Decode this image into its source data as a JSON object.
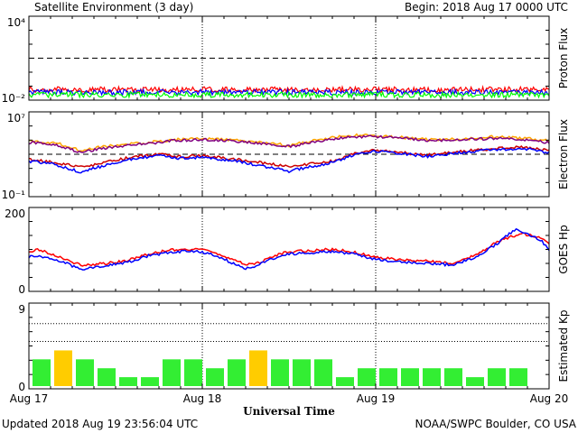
{
  "header": {
    "title": "Satellite Environment (3 day)",
    "begin": "Begin:  2018 Aug 17 0000 UTC"
  },
  "footer": {
    "updated": "Updated 2018 Aug 19 23:56:04 UTC",
    "source": "NOAA/SWPC Boulder, CO USA"
  },
  "colors": {
    "red": "#ff0000",
    "blue": "#0000ff",
    "green": "#00ff00",
    "orange": "#ffa500",
    "purple": "#800080",
    "kp_green": "#33ee33",
    "kp_yellow": "#ffcc00",
    "darkred": "#cc0000"
  },
  "chart_data": [
    {
      "type": "line",
      "ylabel": "Proton Flux",
      "scale": "log",
      "ylim": [
        0.01,
        10000
      ],
      "ytick_labels": [
        "10⁴",
        "10⁻²"
      ],
      "threshold": 10,
      "series": [
        {
          "color": "red",
          "level": 0.04
        },
        {
          "color": "blue",
          "level": 0.025
        },
        {
          "color": "green",
          "level": 0.016
        }
      ]
    },
    {
      "type": "line",
      "ylabel": "Electron Flux",
      "scale": "log",
      "ylim": [
        0.1,
        10000000
      ],
      "ytick_labels": [
        "10⁷",
        "10⁻¹"
      ],
      "threshold": 1000,
      "x": [
        0,
        0.15,
        0.3,
        0.4,
        0.5,
        0.62,
        0.75,
        0.85,
        1.0,
        1.2,
        1.5,
        1.75,
        1.9,
        2.0,
        2.1,
        2.3,
        2.5,
        2.7,
        2.85,
        3.0
      ],
      "series": [
        {
          "color": "orange",
          "values": [
            20000,
            15000,
            2500,
            5000,
            8000,
            12000,
            20000,
            30000,
            40000,
            25000,
            8000,
            50000,
            80000,
            70000,
            60000,
            30000,
            35000,
            60000,
            40000,
            25000
          ]
        },
        {
          "color": "purple",
          "values": [
            15000,
            10000,
            1500,
            3500,
            6000,
            10000,
            15000,
            25000,
            30000,
            20000,
            6000,
            35000,
            60000,
            55000,
            50000,
            25000,
            30000,
            40000,
            30000,
            15000
          ]
        },
        {
          "color": "darkred",
          "values": [
            300,
            150,
            50,
            100,
            250,
            600,
            1000,
            600,
            700,
            300,
            60,
            200,
            1500,
            2500,
            1800,
            800,
            2000,
            4000,
            5000,
            2500
          ]
        },
        {
          "color": "blue",
          "values": [
            200,
            100,
            15,
            50,
            150,
            400,
            700,
            400,
            500,
            200,
            20,
            150,
            1200,
            2000,
            1500,
            600,
            1500,
            3000,
            4000,
            1500
          ]
        }
      ]
    },
    {
      "type": "line",
      "ylabel": "GOES Hp",
      "ylim": [
        0,
        200
      ],
      "ytick_labels": [
        "200",
        "0"
      ],
      "x": [
        0,
        0.05,
        0.15,
        0.3,
        0.45,
        0.55,
        0.7,
        0.85,
        0.95,
        1.05,
        1.15,
        1.25,
        1.35,
        1.45,
        1.55,
        1.75,
        1.85,
        2.0,
        2.1,
        2.3,
        2.45,
        2.6,
        2.7,
        2.8,
        2.85,
        2.95,
        3.0
      ],
      "series": [
        {
          "color": "red",
          "values": [
            95,
            100,
            85,
            60,
            65,
            70,
            90,
            100,
            100,
            95,
            80,
            60,
            70,
            90,
            95,
            100,
            95,
            80,
            75,
            70,
            65,
            90,
            120,
            135,
            140,
            130,
            115
          ]
        },
        {
          "color": "blue",
          "values": [
            80,
            85,
            75,
            50,
            60,
            65,
            85,
            95,
            95,
            90,
            70,
            50,
            65,
            85,
            90,
            95,
            90,
            75,
            70,
            65,
            60,
            85,
            115,
            150,
            145,
            125,
            100
          ]
        }
      ]
    },
    {
      "type": "bar",
      "ylabel": "Estimated Kp",
      "ylim": [
        0,
        9
      ],
      "ytick_labels": [
        "9",
        "0"
      ],
      "values": [
        3,
        4,
        3,
        2,
        1,
        1,
        3,
        3,
        2,
        3,
        4,
        3,
        3,
        3,
        1,
        2,
        2,
        2,
        2,
        2,
        1,
        2,
        2
      ],
      "colors": [
        "kp_green",
        "kp_yellow",
        "kp_green",
        "kp_green",
        "kp_green",
        "kp_green",
        "kp_green",
        "kp_green",
        "kp_green",
        "kp_green",
        "kp_yellow",
        "kp_green",
        "kp_green",
        "kp_green",
        "kp_green",
        "kp_green",
        "kp_green",
        "kp_green",
        "kp_green",
        "kp_green",
        "kp_green",
        "kp_green",
        "kp_green"
      ]
    }
  ],
  "xaxis": {
    "xlim": [
      0,
      3
    ],
    "tick_labels": [
      "Aug 17",
      "Aug 18",
      "Aug 19",
      "Aug 20"
    ],
    "label": "Universal Time"
  }
}
